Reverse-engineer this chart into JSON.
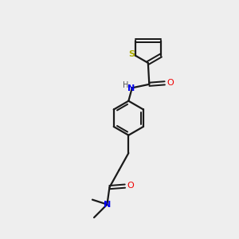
{
  "background_color": "#eeeeee",
  "bond_color": "#1a1a1a",
  "S_color": "#aaaa00",
  "N_color": "#0000ee",
  "O_color": "#ee0000",
  "figsize": [
    3.0,
    3.0
  ],
  "dpi": 100,
  "xlim": [
    0,
    10
  ],
  "ylim": [
    0,
    10
  ]
}
